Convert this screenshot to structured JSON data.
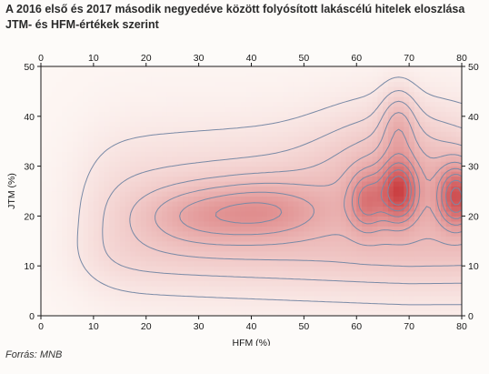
{
  "title": "A 2016 első és 2017 második negyedéve között folyósított lakáscélú hitelek eloszlása JTM- és HFM-értékek szerint",
  "source": "Forrás: MNB",
  "chart_data": {
    "type": "heatmap",
    "subtype": "contour",
    "title": "A 2016 első és 2017 második negyedéve között folyósított lakáscélú hitelek eloszlása JTM- és HFM-értékek szerint",
    "xlabel": "HFM (%)",
    "ylabel": "JTM (%)",
    "xlim": [
      0,
      80
    ],
    "ylim": [
      0,
      50
    ],
    "x_ticks": [
      "0",
      "10",
      "20",
      "30",
      "40",
      "50",
      "60",
      "70",
      "80"
    ],
    "y_ticks": [
      "0",
      "10",
      "20",
      "30",
      "40",
      "50"
    ],
    "axes": "ticks on all four sides (mirrored top and right)",
    "grid": false,
    "colors": {
      "low": "#fdf6f3",
      "high": "#c8373a",
      "contour": "#7a8aa6"
    },
    "contour_levels": [
      0.05,
      0.11,
      0.18,
      0.26,
      0.35,
      0.45,
      0.56,
      0.68,
      0.8
    ],
    "density_peaks": [
      {
        "x": 68,
        "y": 25,
        "relative_density": 1.0
      },
      {
        "x": 79,
        "y": 24,
        "relative_density": 0.95
      },
      {
        "x": 62,
        "y": 23,
        "relative_density": 0.55
      },
      {
        "x": 43,
        "y": 21,
        "relative_density": 0.4
      },
      {
        "x": 30,
        "y": 20,
        "relative_density": 0.3
      },
      {
        "x": 68,
        "y": 38,
        "relative_density": 0.3
      }
    ]
  }
}
